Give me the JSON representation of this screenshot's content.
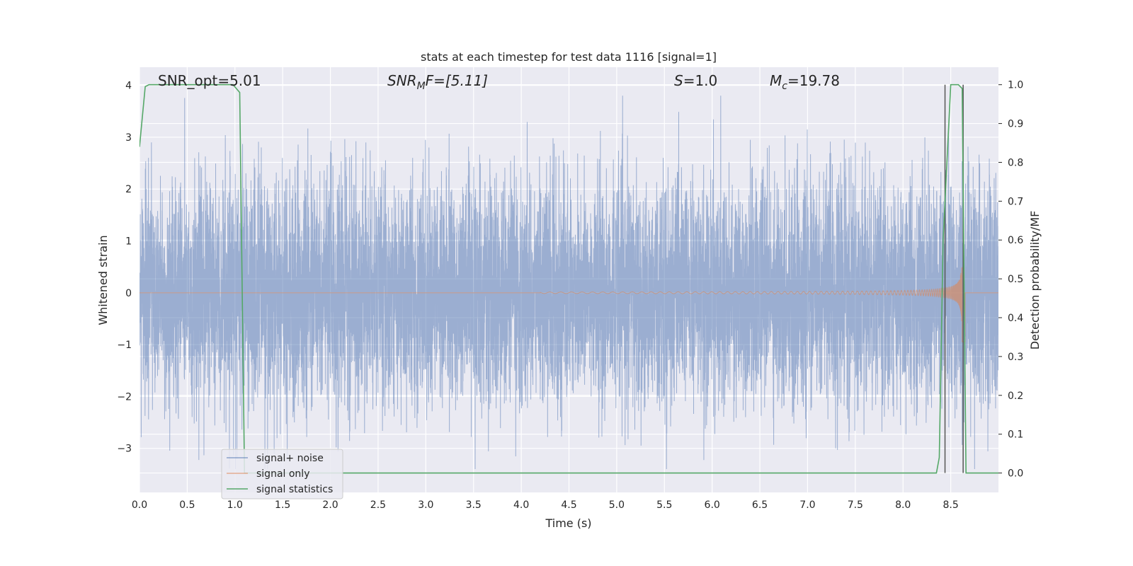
{
  "chart_data": {
    "type": "line",
    "title": "stats at each timestep for test data 1116 [signal=1]",
    "xlabel": "Time (s)",
    "ylabel": "Whitened strain",
    "ylabel_right": "Detection probability/MF",
    "xlim": [
      0.0,
      9.0
    ],
    "ylim": [
      -3.85,
      4.35
    ],
    "ylim_right": [
      -0.05,
      1.045
    ],
    "grid": true,
    "x_ticks": [
      "0.0",
      "0.5",
      "1.0",
      "1.5",
      "2.0",
      "2.5",
      "3.0",
      "3.5",
      "4.0",
      "4.5",
      "5.0",
      "5.5",
      "6.0",
      "6.5",
      "7.0",
      "7.5",
      "8.0",
      "8.5"
    ],
    "x_tick_values": [
      0,
      0.5,
      1,
      1.5,
      2,
      2.5,
      3,
      3.5,
      4,
      4.5,
      5,
      5.5,
      6,
      6.5,
      7,
      7.5,
      8,
      8.5
    ],
    "y_ticks": [
      "4",
      "3",
      "2",
      "1",
      "0",
      "−1",
      "−2",
      "−3"
    ],
    "y_tick_values": [
      4,
      3,
      2,
      1,
      0,
      -1,
      -2,
      -3
    ],
    "y_right_ticks": [
      "1.0",
      "0.9",
      "0.8",
      "0.7",
      "0.6",
      "0.5",
      "0.4",
      "0.3",
      "0.2",
      "0.1",
      "0.0"
    ],
    "y_right_tick_values": [
      1.0,
      0.9,
      0.8,
      0.7,
      0.6,
      0.5,
      0.4,
      0.3,
      0.2,
      0.1,
      0.0
    ],
    "annotations": {
      "snr_opt": "SNR_opt=5.01",
      "snr_mf_main": "SNR",
      "snr_mf_sub": "M",
      "snr_mf_rest": "F=[5.11]",
      "s_italic": "S",
      "s_rest": "=1.0",
      "mc_main": "M",
      "mc_sub": "c",
      "mc_rest": "=19.78"
    },
    "legend": {
      "position": "lower-left",
      "entries": [
        "signal+ noise",
        "signal only",
        "signal statistics"
      ]
    },
    "series": [
      {
        "name": "signal+ noise",
        "color": "#4c72b0",
        "axis": "left",
        "description": "whitened noise with signal, amplitude within about -3.4 to 3.8"
      },
      {
        "name": "signal only",
        "color": "#dd8452",
        "axis": "left",
        "chirp": {
          "start": 4.2,
          "merger": 8.62,
          "end": 8.65,
          "peak_amplitude": 0.95
        }
      },
      {
        "name": "signal statistics",
        "color": "#55a868",
        "axis": "right",
        "x": [
          0.0,
          0.06,
          0.1,
          0.15,
          0.3,
          0.6,
          0.9,
          0.98,
          1.05,
          1.1,
          1.15,
          1.5,
          3.0,
          5.0,
          7.0,
          8.0,
          8.35,
          8.38,
          8.42,
          8.5,
          8.55,
          8.58,
          8.62,
          8.66,
          8.7,
          8.8,
          9.0
        ],
        "y": [
          0.84,
          0.995,
          1.0,
          1.0,
          1.0,
          1.0,
          1.0,
          1.0,
          0.98,
          0.0,
          0.0,
          0.0,
          0.0,
          0.0,
          0.0,
          0.0,
          0.0,
          0.04,
          0.6,
          1.0,
          1.0,
          1.0,
          0.99,
          0.0,
          0.0,
          0.0,
          0.0
        ]
      }
    ],
    "vertical_lines": [
      {
        "x": 8.44,
        "ymin": 0.0,
        "ymax": 1.0,
        "color": "#555555"
      },
      {
        "x": 8.63,
        "ymin": 0.0,
        "ymax": 1.0,
        "color": "#555555"
      }
    ]
  }
}
